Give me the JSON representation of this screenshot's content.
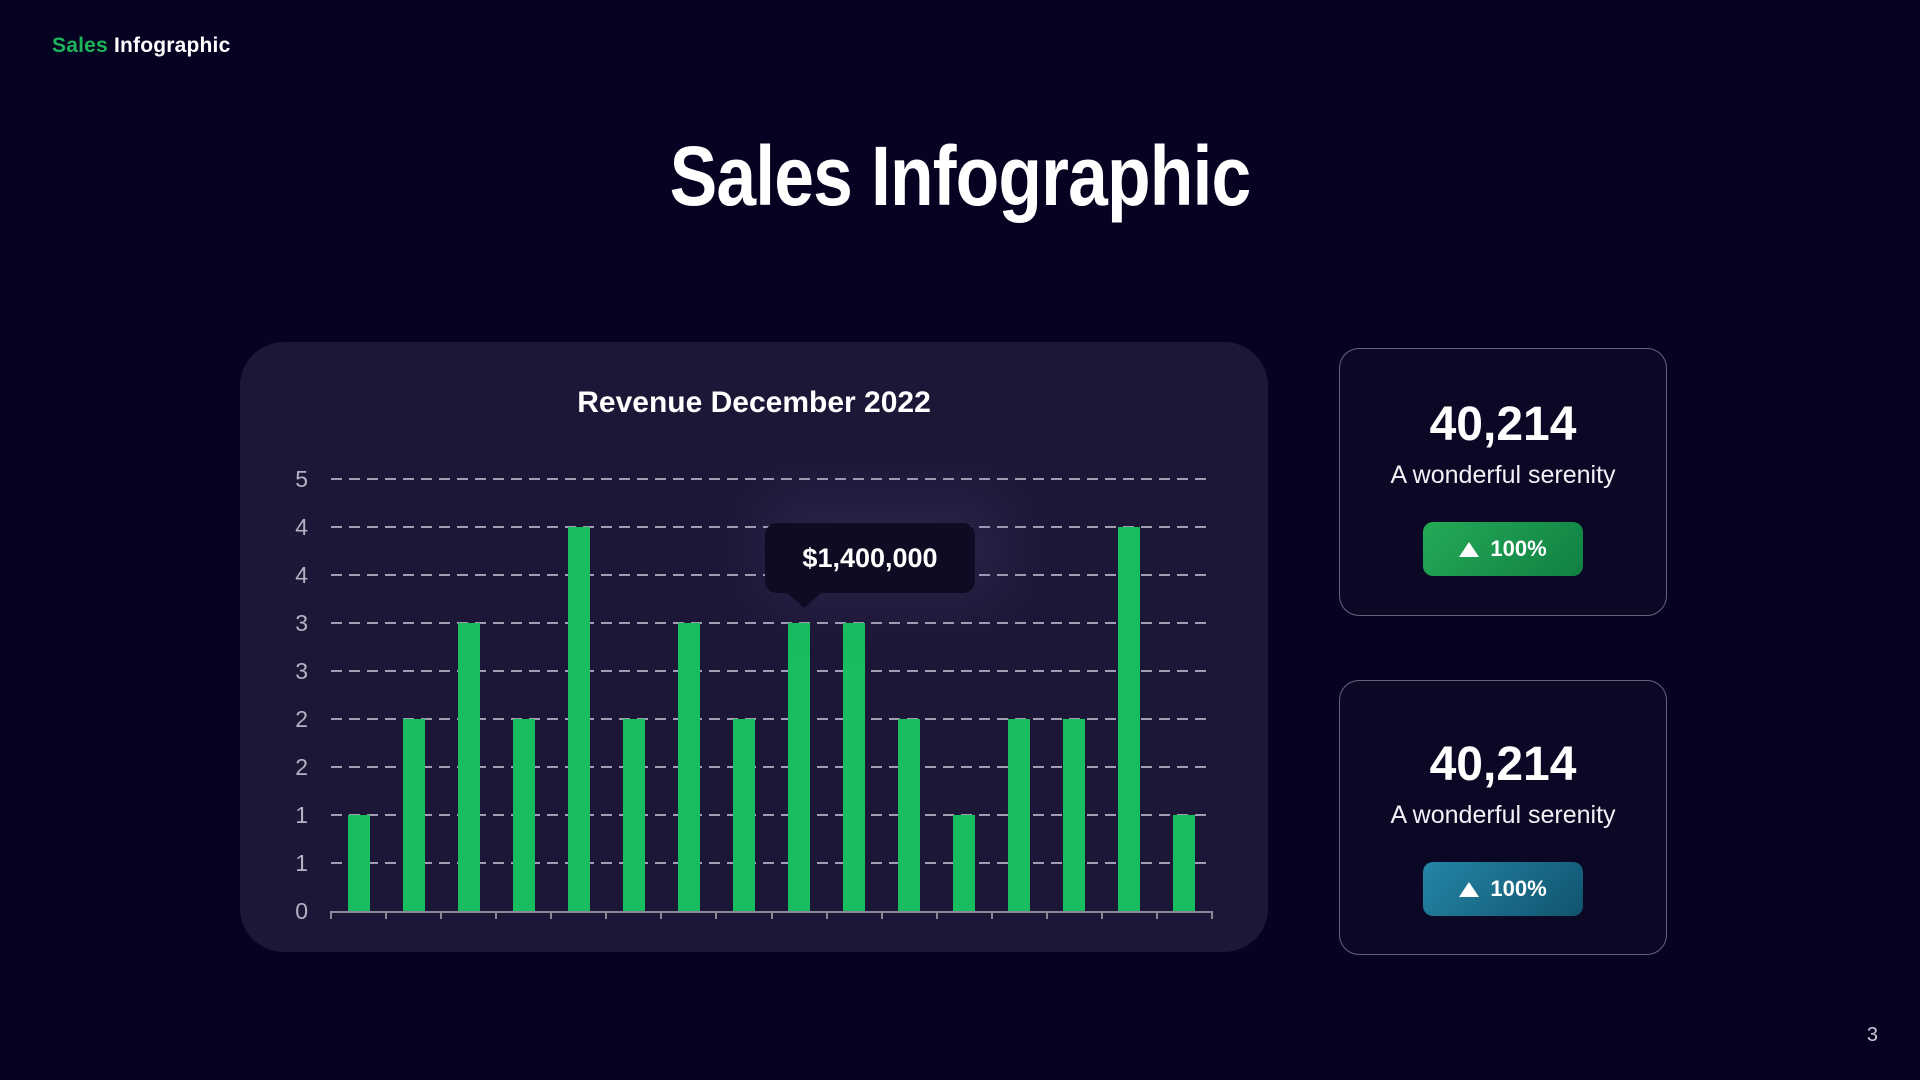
{
  "header": {
    "brand_primary": "Sales",
    "brand_secondary": "Infographic"
  },
  "title": "Sales Infographic",
  "page_number": "3",
  "colors": {
    "page_background": "#060222",
    "chart_card_background": "#1d1737",
    "logo_green": "#1db55a",
    "bar_green": "#17bd5f",
    "badge_green_gradient": [
      "#24aa57",
      "#108043"
    ],
    "badge_blue_gradient": [
      "#2585a6",
      "#10546e"
    ],
    "tooltip_background": "#0e0b22"
  },
  "chart_data": {
    "type": "bar",
    "title": "Revenue December 2022",
    "values": [
      1,
      2,
      3,
      2,
      4,
      2,
      3,
      2,
      3,
      3,
      2,
      1,
      2,
      2,
      4,
      1
    ],
    "categories": [
      "",
      "",
      "",
      "",
      "",
      "",
      "",
      "",
      "",
      "",
      "",
      "",
      "",
      "",
      "",
      ""
    ],
    "xlabel": "",
    "ylabel": "",
    "ylim": [
      0,
      5
    ],
    "y_axis_labels_top_to_bottom": [
      "5",
      "4",
      "4",
      "3",
      "3",
      "2",
      "2",
      "1",
      "1",
      "0"
    ],
    "gridlines": "dashed-horizontal",
    "legend": "none",
    "bar_color": "#17bd5f",
    "tooltip": {
      "text": "$1,400,000",
      "bar_index": 9
    }
  },
  "stat_cards": [
    {
      "value": "40,214",
      "caption": "A wonderful serenity",
      "badge_label": "100%",
      "badge_icon": "triangle-up",
      "badge_gradient": [
        "#24aa57",
        "#108043"
      ]
    },
    {
      "value": "40,214",
      "caption": "A wonderful serenity",
      "badge_label": "100%",
      "badge_icon": "triangle-up",
      "badge_gradient": [
        "#2585a6",
        "#10546e"
      ]
    }
  ]
}
